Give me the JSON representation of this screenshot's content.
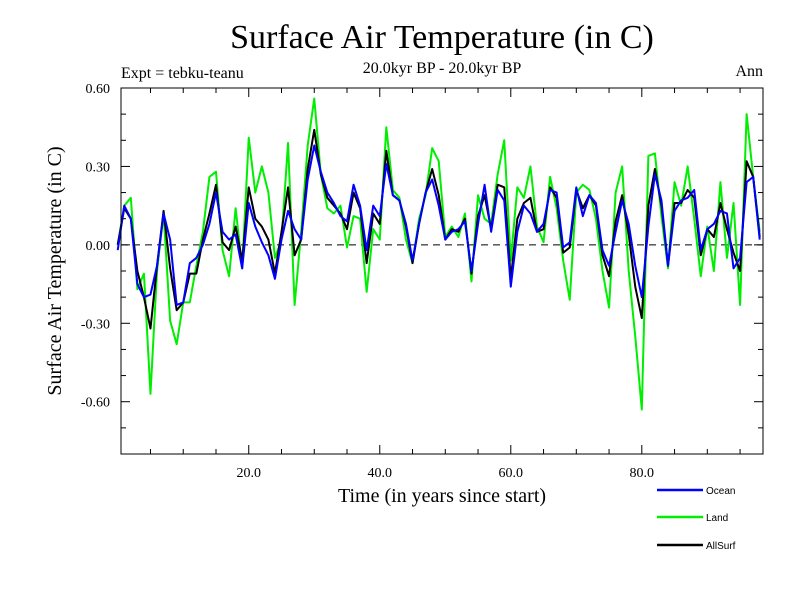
{
  "chart_data": {
    "type": "line",
    "title": "Surface Air Temperature (in C)",
    "subtitle": "20.0kyr BP - 20.0kyr BP",
    "experiment_label": "Expt = tebku-teanu",
    "period_label": "Ann",
    "xlabel": "Time (in years since start)",
    "ylabel": "Surface Air Temperature (in C)",
    "xlim": [
      0.5,
      98.5
    ],
    "ylim": [
      -0.8,
      0.6
    ],
    "x_ticks": [
      20,
      40,
      60,
      80
    ],
    "x_tick_labels": [
      "20.0",
      "40.0",
      "60.0",
      "80.0"
    ],
    "y_ticks": [
      -0.6,
      -0.3,
      0.0,
      0.3,
      0.6
    ],
    "y_tick_labels": [
      "-0.60",
      "-0.30",
      "0.00",
      "0.30",
      "0.60"
    ],
    "zero_line": "dashed",
    "legend_position": "bottom-right",
    "series": [
      {
        "name": "Ocean",
        "color": "#0000ff",
        "values": [
          -0.02,
          0.15,
          0.1,
          -0.15,
          -0.2,
          -0.19,
          -0.08,
          0.12,
          0.02,
          -0.23,
          -0.22,
          -0.07,
          -0.05,
          0.0,
          0.08,
          0.2,
          0.05,
          0.02,
          0.04,
          -0.09,
          0.16,
          0.07,
          0.01,
          -0.04,
          -0.13,
          0.02,
          0.13,
          0.06,
          0.02,
          0.25,
          0.38,
          0.28,
          0.2,
          0.16,
          0.11,
          0.09,
          0.23,
          0.15,
          -0.02,
          0.15,
          0.11,
          0.31,
          0.19,
          0.17,
          0.08,
          -0.06,
          0.08,
          0.2,
          0.25,
          0.15,
          0.02,
          0.05,
          0.06,
          0.09,
          -0.1,
          0.08,
          0.23,
          0.05,
          0.21,
          0.17,
          -0.16,
          0.05,
          0.15,
          0.12,
          0.05,
          0.08,
          0.21,
          0.2,
          -0.01,
          0.01,
          0.22,
          0.11,
          0.19,
          0.16,
          -0.02,
          -0.08,
          0.05,
          0.17,
          0.08,
          -0.08,
          -0.2,
          0.07,
          0.27,
          0.17,
          -0.08,
          0.13,
          0.17,
          0.18,
          0.21,
          -0.02,
          0.06,
          0.08,
          0.13,
          0.12,
          -0.09,
          -0.05,
          0.24,
          0.26,
          0.02
        ]
      },
      {
        "name": "Land",
        "color": "#00ee00",
        "values": [
          0.0,
          0.15,
          0.18,
          -0.17,
          -0.11,
          -0.57,
          -0.1,
          0.12,
          -0.29,
          -0.38,
          -0.22,
          -0.22,
          -0.08,
          0.05,
          0.26,
          0.28,
          -0.02,
          -0.12,
          0.14,
          -0.09,
          0.41,
          0.2,
          0.3,
          0.2,
          -0.05,
          0.02,
          0.39,
          -0.23,
          0.05,
          0.38,
          0.56,
          0.27,
          0.14,
          0.12,
          0.15,
          -0.01,
          0.11,
          0.1,
          -0.18,
          0.06,
          0.02,
          0.45,
          0.21,
          0.18,
          0.02,
          -0.07,
          0.1,
          0.19,
          0.37,
          0.32,
          0.03,
          0.07,
          0.03,
          0.12,
          -0.14,
          0.19,
          0.1,
          0.08,
          0.27,
          0.4,
          -0.06,
          0.22,
          0.18,
          0.3,
          0.07,
          0.01,
          0.26,
          0.14,
          -0.06,
          -0.21,
          0.2,
          0.23,
          0.21,
          0.1,
          -0.1,
          -0.24,
          0.2,
          0.3,
          -0.1,
          -0.35,
          -0.63,
          0.34,
          0.35,
          0.11,
          -0.09,
          0.24,
          0.15,
          0.3,
          0.1,
          -0.12,
          0.07,
          -0.1,
          0.24,
          -0.05,
          0.16,
          -0.23,
          0.5,
          0.26,
          0.05
        ]
      },
      {
        "name": "AllSurf",
        "color": "#000000",
        "values": [
          0.0,
          0.14,
          0.1,
          -0.1,
          -0.2,
          -0.32,
          -0.08,
          0.13,
          -0.09,
          -0.25,
          -0.22,
          -0.11,
          -0.11,
          0.02,
          0.12,
          0.23,
          0.01,
          -0.02,
          0.07,
          -0.06,
          0.22,
          0.1,
          0.07,
          0.02,
          -0.11,
          0.05,
          0.22,
          -0.04,
          0.02,
          0.29,
          0.44,
          0.27,
          0.18,
          0.15,
          0.12,
          0.06,
          0.2,
          0.14,
          -0.07,
          0.12,
          0.08,
          0.36,
          0.19,
          0.17,
          0.07,
          -0.07,
          0.08,
          0.2,
          0.29,
          0.19,
          0.02,
          0.06,
          0.05,
          0.1,
          -0.11,
          0.11,
          0.19,
          0.06,
          0.23,
          0.22,
          -0.13,
          0.1,
          0.16,
          0.18,
          0.05,
          0.06,
          0.22,
          0.18,
          -0.03,
          -0.01,
          0.21,
          0.14,
          0.19,
          0.15,
          -0.04,
          -0.12,
          0.09,
          0.19,
          0.04,
          -0.16,
          -0.28,
          0.15,
          0.29,
          0.15,
          -0.08,
          0.16,
          0.16,
          0.21,
          0.18,
          -0.04,
          0.06,
          0.03,
          0.16,
          0.06,
          -0.03,
          -0.1,
          0.32,
          0.26,
          0.03
        ]
      }
    ]
  }
}
